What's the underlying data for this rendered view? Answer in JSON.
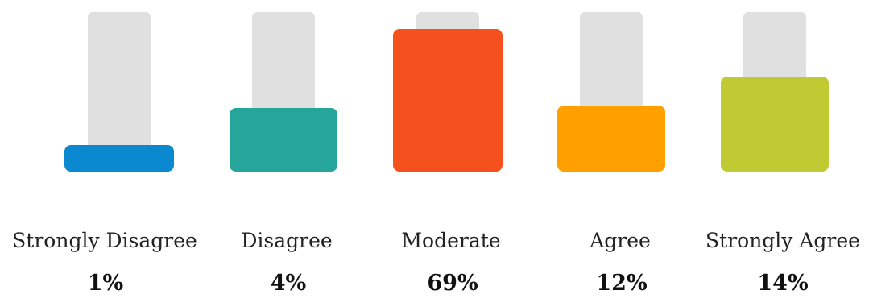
{
  "chart_data": {
    "type": "bar",
    "categories": [
      "Strongly Disagree",
      "Disagree",
      "Moderate",
      "Agree",
      "Strongly Agree"
    ],
    "values": [
      1,
      4,
      69,
      12,
      14
    ],
    "value_labels": [
      "1%",
      "4%",
      "69%",
      "12%",
      "14%"
    ],
    "colors": [
      "#0a88d0",
      "#26a69a",
      "#f4511e",
      "#ffa000",
      "#c0ca33"
    ],
    "track_color": "#e0e0e0",
    "title": "",
    "xlabel": "",
    "ylabel": "",
    "grid": false,
    "legend": "none"
  }
}
